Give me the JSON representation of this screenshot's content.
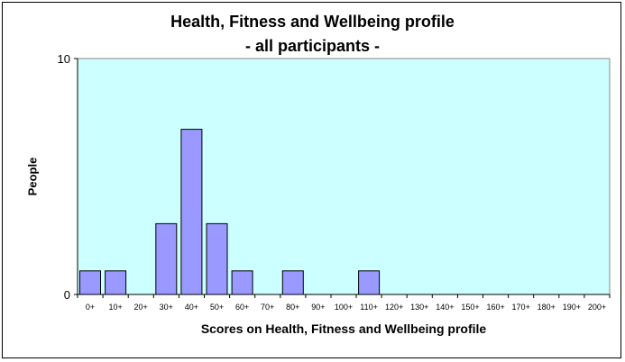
{
  "chart_data": {
    "type": "bar",
    "title_line1": "Health, Fitness and Wellbeing profile",
    "title_line2": "- all participants -",
    "xlabel": "Scores on Health, Fitness and Wellbeing profile",
    "ylabel": "People",
    "ylim": [
      0,
      10
    ],
    "yticks": [
      "0",
      "10"
    ],
    "categories": [
      "0+",
      "10+",
      "20+",
      "30+",
      "40+",
      "50+",
      "60+",
      "70+",
      "80+",
      "90+",
      "100+",
      "110+",
      "120+",
      "130+",
      "140+",
      "150+",
      "160+",
      "170+",
      "180+",
      "190+",
      "200+"
    ],
    "values": [
      1,
      1,
      0,
      3,
      7,
      3,
      1,
      0,
      1,
      0,
      0,
      1,
      0,
      0,
      0,
      0,
      0,
      0,
      0,
      0,
      0
    ],
    "colors": {
      "plot_bg": "#ccffff",
      "bar_fill": "#9999ff",
      "bar_stroke": "#000000"
    }
  }
}
